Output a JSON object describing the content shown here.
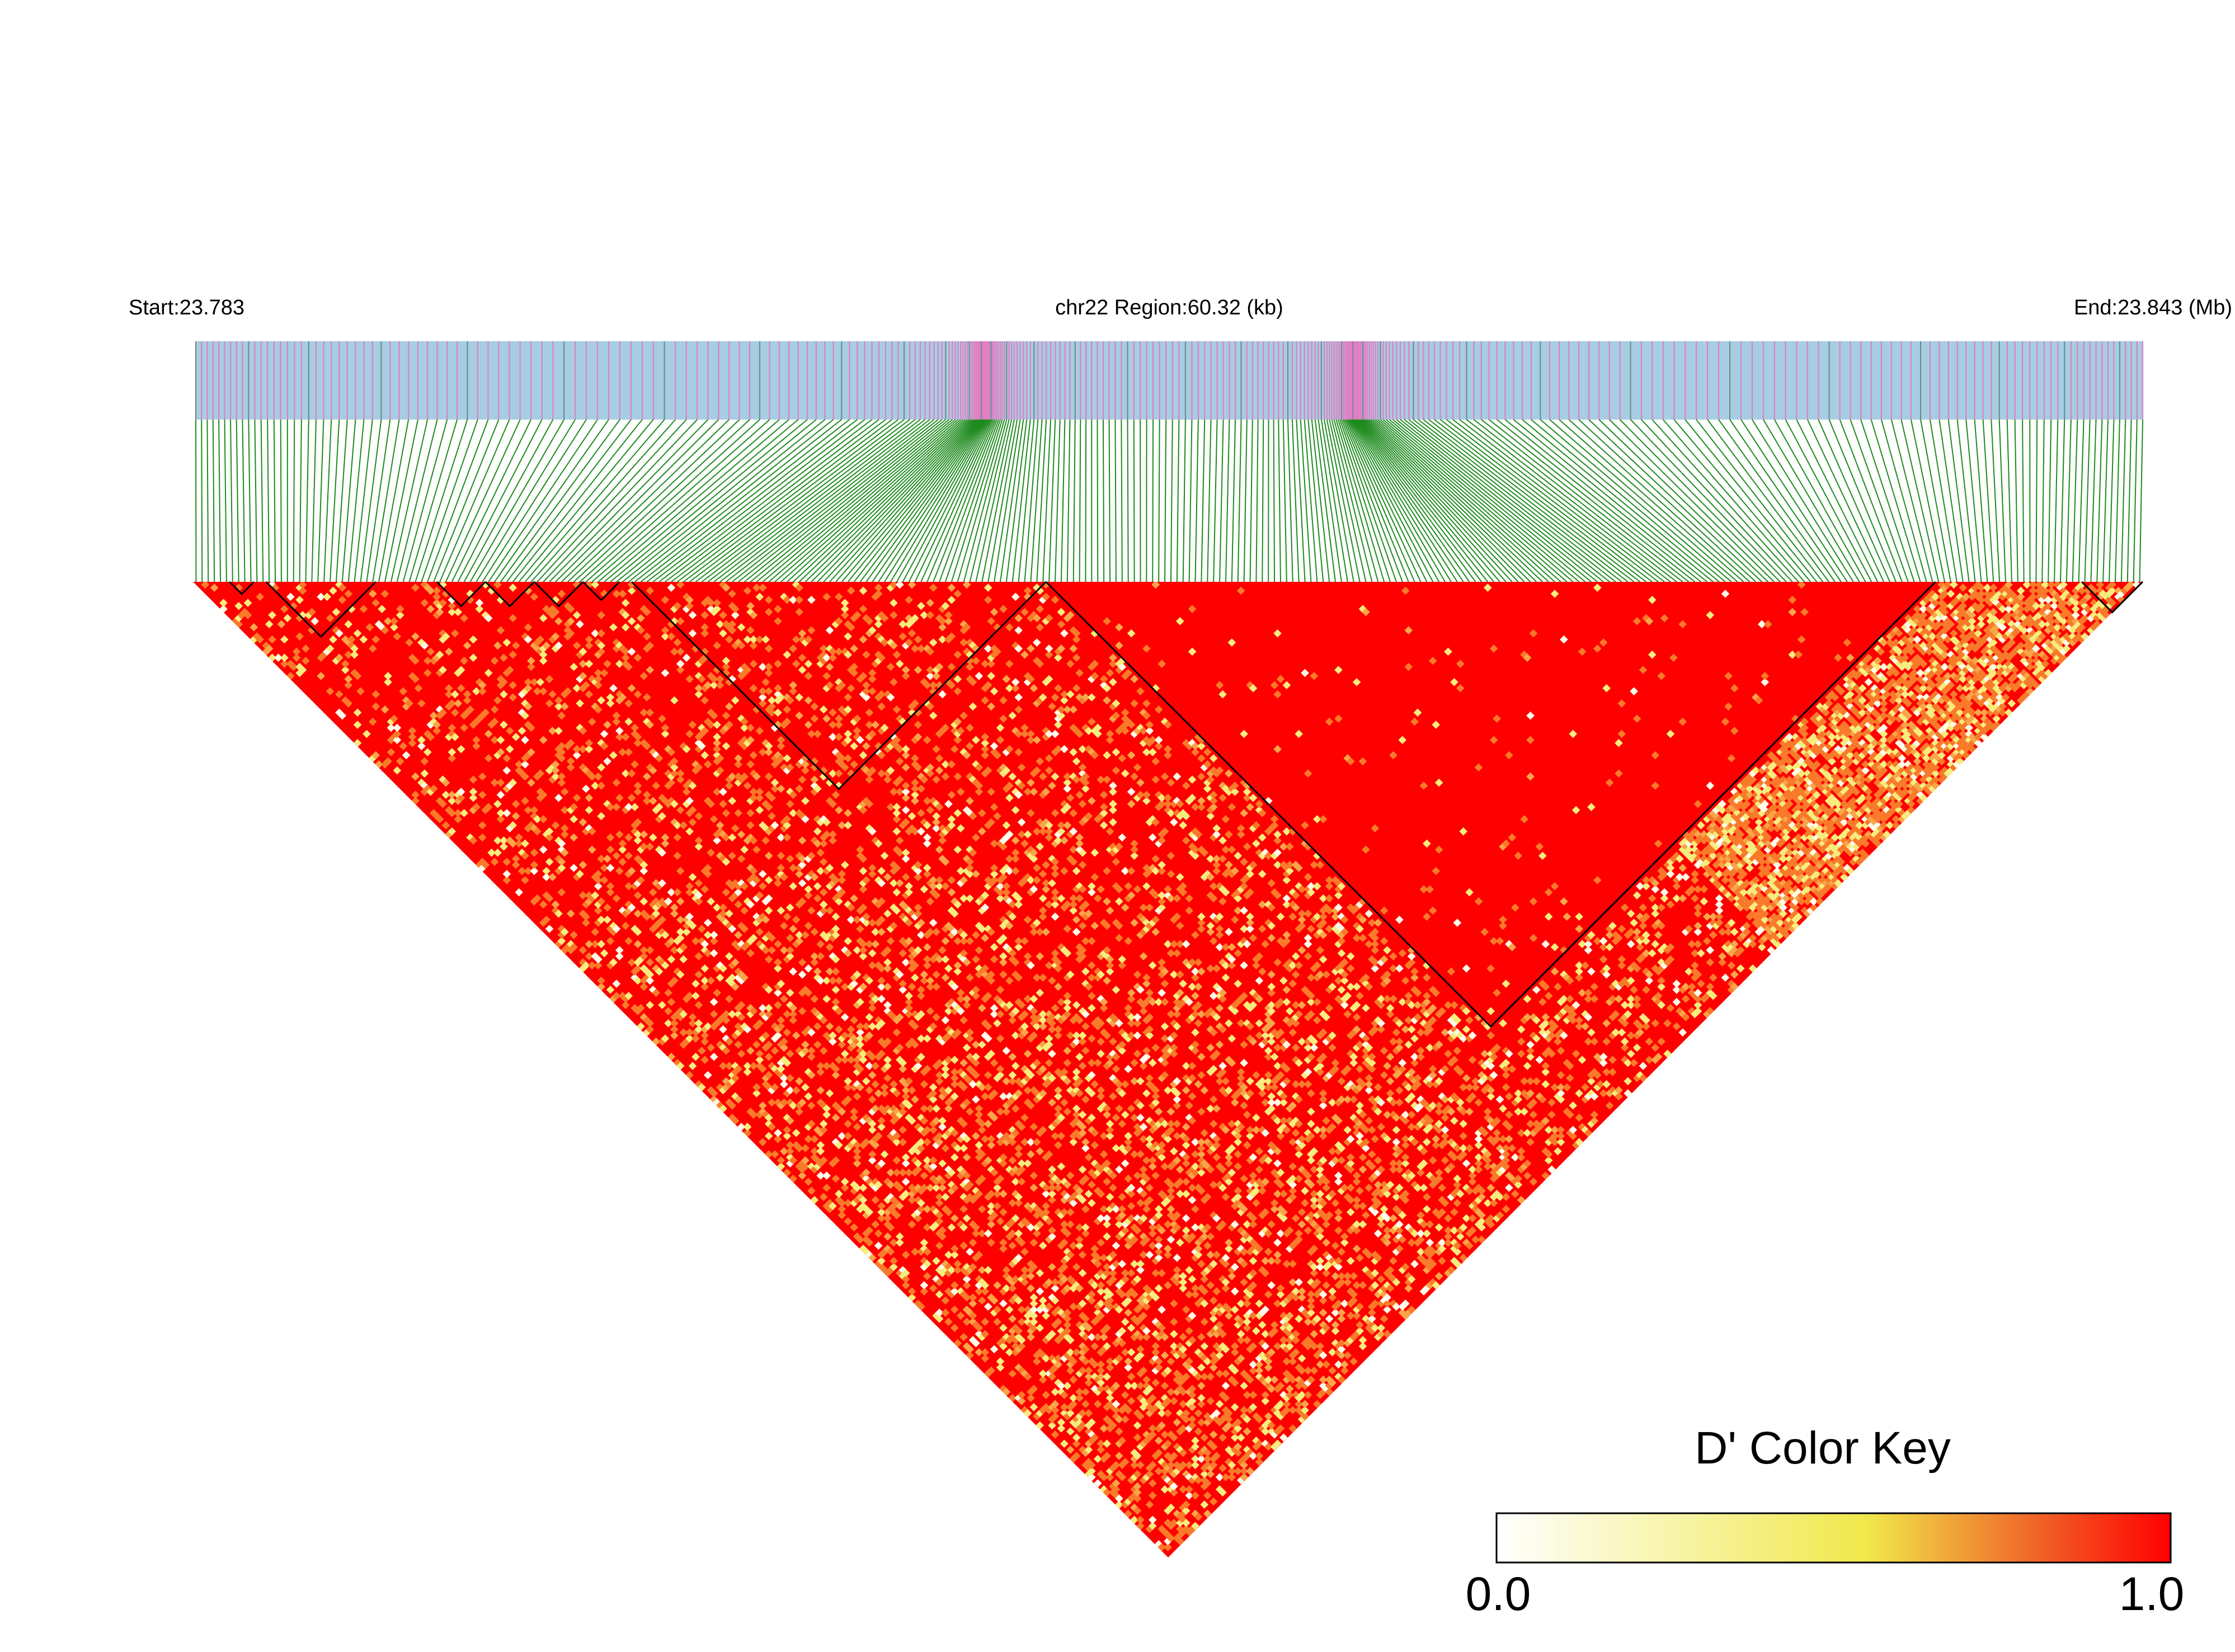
{
  "header": {
    "start_label": "Start:23.783",
    "region_label": "chr22 Region:60.32 (kb)",
    "end_label": "End:23.843 (Mb)"
  },
  "legend": {
    "title": "D' Color Key",
    "min_label": "0.0",
    "max_label": "1.0",
    "stops": [
      "#ffffff",
      "#f2ee7a",
      "#ee4d24",
      "#ff0000"
    ]
  },
  "colors": {
    "track_background": "#a6cde2",
    "variant_mark": "#e07fc4",
    "gene_mark": "#6e8e90",
    "connector": "#1e8a1e",
    "ld_high": "#ff0000",
    "ld_mid": "#f97a2a",
    "ld_low": "#f7ec7e",
    "ld_vlow": "#fffbea"
  },
  "chart_data": {
    "type": "heatmap",
    "region": {
      "chromosome": "chr22",
      "start_mb": 23.783,
      "end_mb": 23.843,
      "span_kb": 60.32
    },
    "snp_count": 320,
    "value_range": [
      0.0,
      1.0
    ],
    "blocks": [
      [
        6,
        10
      ],
      [
        12,
        30
      ],
      [
        40,
        48
      ],
      [
        48,
        56
      ],
      [
        56,
        64
      ],
      [
        64,
        70
      ],
      [
        72,
        140
      ],
      [
        140,
        286
      ],
      [
        310,
        320
      ]
    ]
  }
}
